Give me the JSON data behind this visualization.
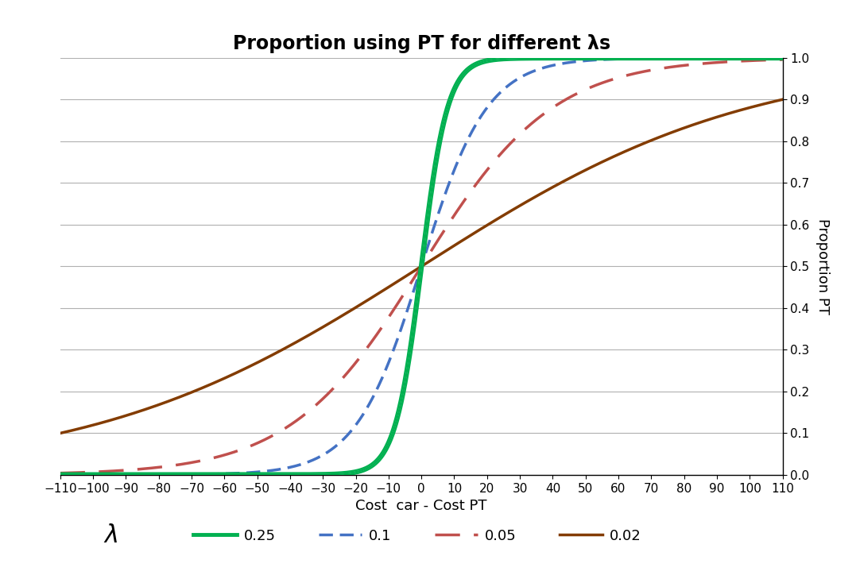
{
  "title": "Proportion using PT for different λs",
  "xlabel": "Cost  car - Cost PT",
  "ylabel": "Proportion PT",
  "xlim": [
    -110,
    110
  ],
  "ylim": [
    0.0,
    1.0
  ],
  "xticks": [
    -110,
    -100,
    -90,
    -80,
    -70,
    -60,
    -50,
    -40,
    -30,
    -20,
    -10,
    0,
    10,
    20,
    30,
    40,
    50,
    60,
    70,
    80,
    90,
    100,
    110
  ],
  "yticks": [
    0.0,
    0.1,
    0.2,
    0.3,
    0.4,
    0.5,
    0.6,
    0.7,
    0.8,
    0.9,
    1.0
  ],
  "series": [
    {
      "label": "0.25",
      "lambda": 0.25,
      "color": "#00b050",
      "linewidth": 2.2,
      "style": "double_solid"
    },
    {
      "label": "0.1",
      "lambda": 0.1,
      "color": "#4472c4",
      "linewidth": 2.5,
      "style": "dashed_short"
    },
    {
      "label": "0.05",
      "lambda": 0.05,
      "color": "#c0504d",
      "linewidth": 2.5,
      "style": "dashed_long"
    },
    {
      "label": "0.02",
      "lambda": 0.02,
      "color": "#833c00",
      "linewidth": 2.5,
      "style": "solid"
    }
  ],
  "legend_lambda_label": "λ",
  "background_color": "#ffffff",
  "grid_color": "#b0b0b0",
  "title_fontsize": 17,
  "axis_label_fontsize": 13,
  "tick_fontsize": 11,
  "legend_fontsize": 13
}
